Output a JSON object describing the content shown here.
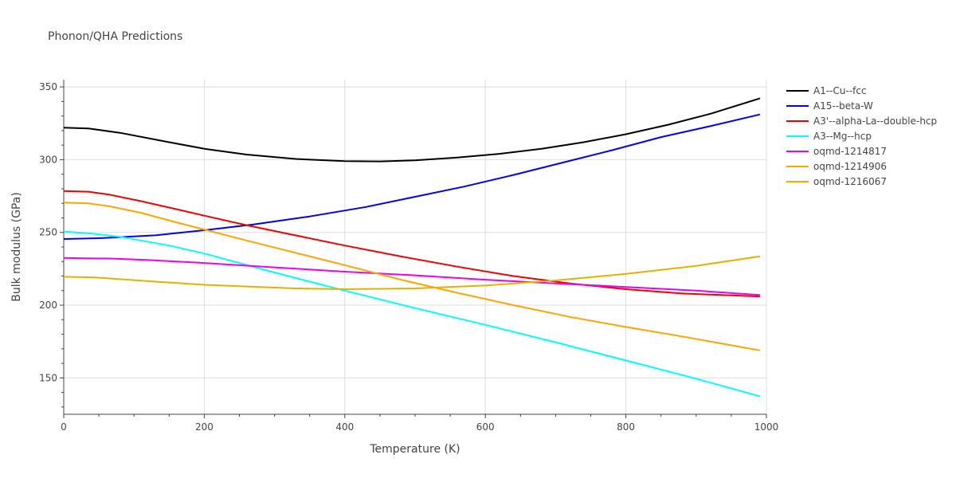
{
  "chart_data": {
    "type": "line",
    "title": "Phonon/QHA Predictions",
    "xlabel": "Temperature (K)",
    "ylabel": "Bulk modulus (GPa)",
    "xlim": [
      0,
      1000
    ],
    "ylim": [
      125,
      355
    ],
    "xticks": [
      0,
      200,
      400,
      600,
      800,
      1000
    ],
    "yticks": [
      150,
      200,
      250,
      300,
      350
    ],
    "grid": true,
    "legend_position": "top-right",
    "series": [
      {
        "name": "A1--Cu--fcc",
        "color": "#000000",
        "x": [
          0,
          35,
          80,
          150,
          200,
          260,
          330,
          400,
          450,
          500,
          560,
          620,
          680,
          740,
          800,
          860,
          920,
          990
        ],
        "y": [
          322,
          321.5,
          318.5,
          312,
          307.5,
          303.5,
          300.5,
          299,
          298.8,
          299.5,
          301.5,
          304,
          307.5,
          312,
          317.5,
          324,
          331.5,
          342
        ]
      },
      {
        "name": "A15--beta-W",
        "color": "#0000ee",
        "x": [
          0,
          50,
          130,
          200,
          270,
          350,
          430,
          500,
          570,
          640,
          710,
          780,
          850,
          920,
          990
        ],
        "y": [
          245.5,
          246,
          248,
          251.5,
          255.5,
          261,
          267.5,
          274.5,
          281.5,
          289.5,
          298,
          306.5,
          315.5,
          323,
          331
        ]
      },
      {
        "name": "A3'--alpha-La--double-hcp",
        "color": "#ee0000",
        "x": [
          0,
          35,
          65,
          110,
          160,
          200,
          260,
          320,
          400,
          480,
          560,
          640,
          720,
          800,
          880,
          990
        ],
        "y": [
          278.5,
          278,
          276,
          271.5,
          266,
          261.5,
          255,
          249,
          241,
          233.5,
          226.5,
          220,
          215,
          211,
          208,
          206
        ]
      },
      {
        "name": "A3--Mg--hcp",
        "color": "#00ffff",
        "x": [
          0,
          35,
          80,
          150,
          200,
          300,
          400,
          500,
          600,
          700,
          800,
          900,
          990
        ],
        "y": [
          250.5,
          249.5,
          247,
          241,
          235.5,
          222.5,
          210,
          198,
          186.5,
          174.5,
          162,
          149.5,
          137.5
        ]
      },
      {
        "name": "oqmd-1214817",
        "color": "#ee00ee",
        "x": [
          0,
          30,
          70,
          120,
          200,
          300,
          400,
          500,
          600,
          700,
          800,
          900,
          990
        ],
        "y": [
          232.5,
          232.2,
          232,
          231,
          229,
          226,
          223,
          220.5,
          217.5,
          215,
          212.5,
          210,
          207
        ]
      },
      {
        "name": "oqmd-1214906",
        "color": "#e6b000",
        "x": [
          0,
          45,
          120,
          200,
          250,
          330,
          400,
          500,
          600,
          700,
          800,
          900,
          990
        ],
        "y": [
          219.5,
          219,
          216.5,
          214,
          213,
          211.5,
          211,
          211.5,
          213.5,
          217,
          221.5,
          227,
          233.5
        ]
      },
      {
        "name": "oqmd-1216067",
        "color": "#ffa500",
        "x": [
          0,
          35,
          65,
          110,
          160,
          200,
          260,
          330,
          400,
          480,
          560,
          640,
          720,
          800,
          880,
          990
        ],
        "y": [
          270.5,
          270,
          268,
          263.5,
          257,
          252,
          244.5,
          236,
          227.5,
          217.5,
          208.5,
          200,
          192,
          185,
          178.5,
          169
        ]
      }
    ]
  }
}
